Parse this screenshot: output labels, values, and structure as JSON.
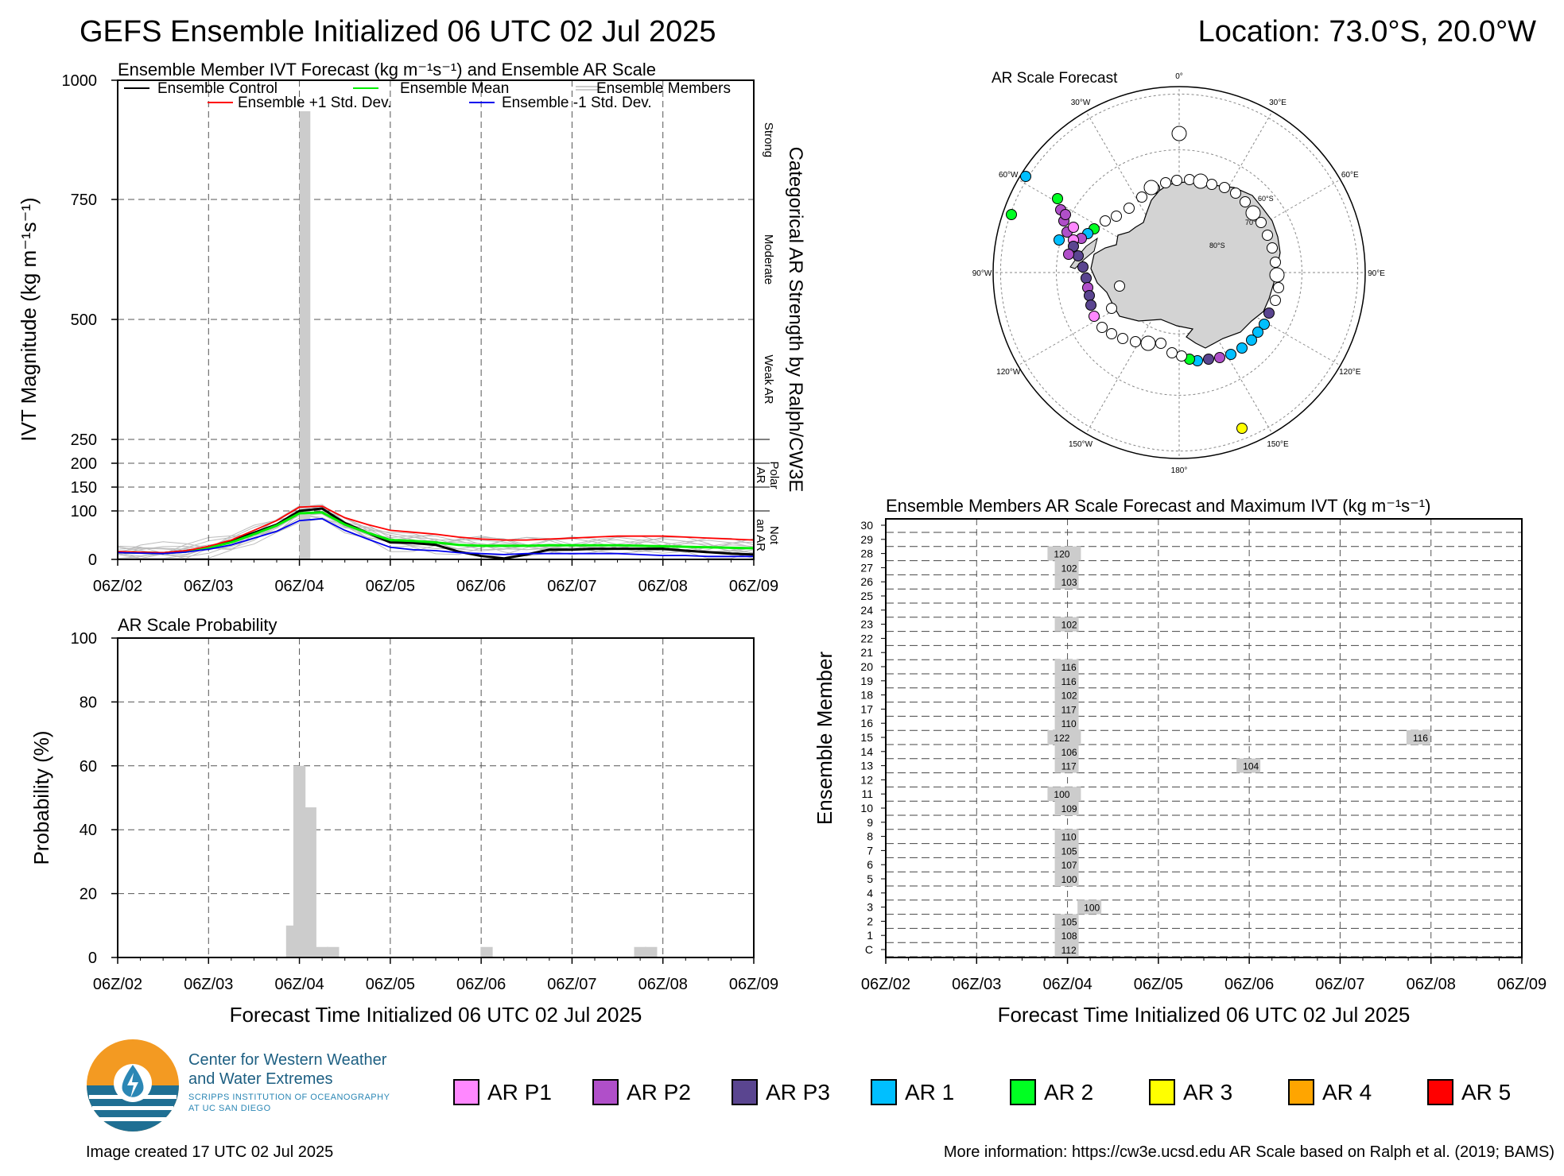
{
  "header": {
    "title": "GEFS Ensemble Initialized 06 UTC 02 Jul 2025",
    "location": "Location: 73.0°S, 20.0°W"
  },
  "colors": {
    "control": "#000000",
    "mean": "#00ee00",
    "plus_std": "#ff0000",
    "minus_std": "#0000ee",
    "members": "#bbbbbb",
    "bars": "#cccccc"
  },
  "x_ticks": [
    "06Z/02",
    "06Z/03",
    "06Z/04",
    "06Z/05",
    "06Z/06",
    "06Z/07",
    "06Z/08",
    "06Z/09"
  ],
  "ivt_panel": {
    "title": "Ensemble Member IVT Forecast (kg m⁻¹s⁻¹) and Ensemble AR Scale",
    "ylabel": "IVT Magnitude (kg m⁻¹s⁻¹)",
    "right_label": "Categorical AR Strength by Ralph/CW3E",
    "legend": {
      "control": "Ensemble Control",
      "mean": "Ensemble Mean",
      "members": "Ensemble Members",
      "plus": "Ensemble +1 Std. Dev.",
      "minus": "Ensemble -1 Std. Dev."
    },
    "categories": [
      "Strong",
      "Moderate",
      "Weak AR",
      "Polar AR",
      "Not an AR"
    ]
  },
  "prob_panel": {
    "title": "AR Scale Probability",
    "ylabel": "Probability (%)",
    "xlabel": "Forecast Time Initialized 06 UTC 02 Jul 2025"
  },
  "map_panel": {
    "title": "AR Scale Forecast",
    "lon_labels": [
      "0°",
      "30°E",
      "60°E",
      "90°E",
      "120°E",
      "150°E",
      "180°",
      "150°W",
      "120°W",
      "90°W",
      "60°W",
      "30°W"
    ],
    "lat_labels": [
      "60°S",
      "70°S",
      "80°S"
    ]
  },
  "member_panel": {
    "title": "Ensemble Members AR Scale Forecast and Maximum IVT (kg m⁻¹s⁻¹)",
    "ylabel": "Ensemble Member",
    "xlabel": "Forecast Time Initialized 06 UTC 02 Jul 2025",
    "members": [
      "C",
      "1",
      "2",
      "3",
      "4",
      "5",
      "6",
      "7",
      "8",
      "9",
      "10",
      "11",
      "12",
      "13",
      "14",
      "15",
      "16",
      "17",
      "18",
      "19",
      "20",
      "21",
      "22",
      "23",
      "24",
      "25",
      "26",
      "27",
      "28",
      "29",
      "30"
    ]
  },
  "ar_legend": [
    {
      "label": "AR P1",
      "color": "#ff88ff"
    },
    {
      "label": "AR P2",
      "color": "#b04fc9"
    },
    {
      "label": "AR P3",
      "color": "#5a4590"
    },
    {
      "label": "AR 1",
      "color": "#00bfff"
    },
    {
      "label": "AR 2",
      "color": "#00ff22"
    },
    {
      "label": "AR 3",
      "color": "#ffff00"
    },
    {
      "label": "AR 4",
      "color": "#ffa500"
    },
    {
      "label": "AR 5",
      "color": "#ff0000"
    }
  ],
  "logo": {
    "line1": "Center for Western Weather",
    "line2": "and Water Extremes",
    "line3": "SCRIPPS INSTITUTION OF OCEANOGRAPHY",
    "line4": "AT UC SAN DIEGO"
  },
  "footer": {
    "created": "Image created 17 UTC 02 Jul 2025",
    "info": "More information: https://cw3e.ucsd.edu AR Scale based on Ralph et al. (2019; BAMS)"
  },
  "chart_data": [
    {
      "type": "line",
      "name": "ivt",
      "x_days": [
        0,
        0.25,
        0.5,
        0.75,
        1,
        1.25,
        1.5,
        1.75,
        2,
        2.25,
        2.5,
        2.75,
        3,
        3.25,
        3.5,
        3.75,
        4,
        4.25,
        4.5,
        4.75,
        5,
        5.25,
        5.5,
        5.75,
        6,
        6.25,
        6.5,
        6.75,
        7
      ],
      "series": [
        {
          "name": "Ensemble Control",
          "values": [
            15,
            14,
            13,
            17,
            25,
            38,
            55,
            72,
            100,
            105,
            75,
            55,
            35,
            34,
            30,
            16,
            7,
            2,
            10,
            20,
            20,
            22,
            22,
            22,
            22,
            18,
            15,
            12,
            10
          ]
        },
        {
          "name": "Ensemble Mean",
          "values": [
            15,
            14,
            13,
            16,
            24,
            35,
            52,
            70,
            95,
            97,
            72,
            55,
            40,
            38,
            35,
            30,
            28,
            28,
            28,
            29,
            29,
            29,
            29,
            28,
            27,
            26,
            25,
            24,
            23
          ]
        },
        {
          "name": "Ensemble +1 Std. Dev.",
          "values": [
            16,
            15,
            14,
            18,
            27,
            40,
            60,
            80,
            108,
            110,
            86,
            72,
            60,
            56,
            52,
            46,
            42,
            40,
            40,
            42,
            44,
            46,
            48,
            48,
            48,
            46,
            44,
            42,
            40
          ]
        },
        {
          "name": "Ensemble -1 Std. Dev.",
          "values": [
            14,
            13,
            12,
            15,
            21,
            30,
            44,
            58,
            80,
            84,
            60,
            42,
            25,
            20,
            18,
            14,
            12,
            10,
            12,
            12,
            12,
            12,
            12,
            10,
            8,
            8,
            6,
            6,
            6
          ]
        }
      ],
      "ar_scale_bar": {
        "x_start": 2.0,
        "x_end": 2.12,
        "value": 935
      },
      "yticks": [
        0,
        100,
        150,
        200,
        250,
        500,
        750,
        1000
      ],
      "ylim": [
        0,
        1000
      ]
    },
    {
      "type": "bar",
      "name": "ar_probability",
      "bars": [
        {
          "x": 1.92,
          "value": 10
        },
        {
          "x": 2.0,
          "value": 60
        },
        {
          "x": 2.12,
          "value": 47
        },
        {
          "x": 2.25,
          "value": 3.3
        },
        {
          "x": 2.37,
          "value": 3.3
        },
        {
          "x": 4.06,
          "value": 3.3
        },
        {
          "x": 5.75,
          "value": 3.3
        },
        {
          "x": 5.87,
          "value": 3.3
        }
      ],
      "yticks": [
        0,
        20,
        40,
        60,
        80,
        100
      ],
      "ylim": [
        0,
        100
      ]
    },
    {
      "type": "heatmap",
      "name": "member_ar_scale",
      "cells": [
        {
          "member": "28",
          "x": 1.92,
          "label": "120"
        },
        {
          "member": "27",
          "x": 2.0,
          "label": "102"
        },
        {
          "member": "26",
          "x": 2.0,
          "label": "103"
        },
        {
          "member": "23",
          "x": 2.0,
          "label": "102"
        },
        {
          "member": "20",
          "x": 2.0,
          "label": "116"
        },
        {
          "member": "19",
          "x": 2.0,
          "label": "116"
        },
        {
          "member": "18",
          "x": 2.0,
          "label": "102"
        },
        {
          "member": "17",
          "x": 2.0,
          "label": "117"
        },
        {
          "member": "16",
          "x": 2.0,
          "label": "110"
        },
        {
          "member": "15",
          "x": 1.92,
          "label": "122"
        },
        {
          "member": "15",
          "x": 5.87,
          "label": "116"
        },
        {
          "member": "14",
          "x": 2.0,
          "label": "106"
        },
        {
          "member": "13",
          "x": 2.0,
          "label": "117"
        },
        {
          "member": "13",
          "x": 4.0,
          "label": "104"
        },
        {
          "member": "11",
          "x": 1.92,
          "label": "100"
        },
        {
          "member": "10",
          "x": 2.0,
          "label": "109"
        },
        {
          "member": "8",
          "x": 2.0,
          "label": "110"
        },
        {
          "member": "7",
          "x": 2.0,
          "label": "105"
        },
        {
          "member": "6",
          "x": 2.0,
          "label": "107"
        },
        {
          "member": "5",
          "x": 2.0,
          "label": "100"
        },
        {
          "member": "3",
          "x": 2.25,
          "label": "100"
        },
        {
          "member": "2",
          "x": 2.0,
          "label": "105"
        },
        {
          "member": "1",
          "x": 2.0,
          "label": "108"
        },
        {
          "member": "C",
          "x": 2.0,
          "label": "112"
        }
      ]
    }
  ]
}
